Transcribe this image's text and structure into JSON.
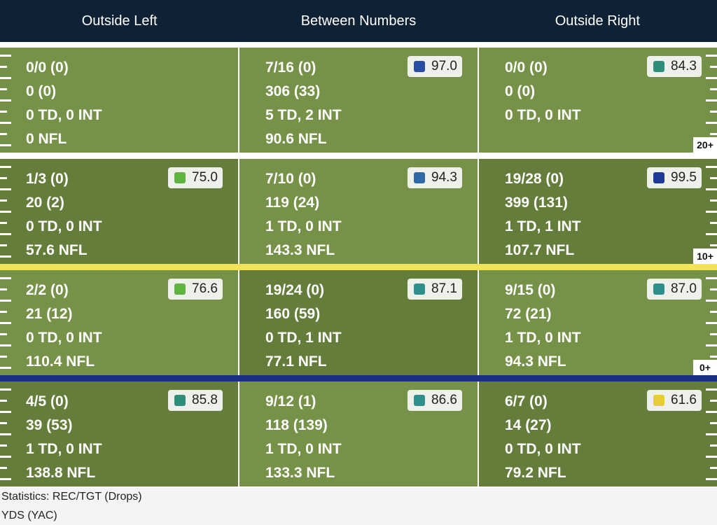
{
  "header": {
    "columns": [
      "Outside Left",
      "Between Numbers",
      "Outside Right"
    ]
  },
  "colors": {
    "header_bg": "#0f2235",
    "field_light": "#769148",
    "field_dark": "#647d3a",
    "line_white": "#ffffff",
    "line_yellow": "#f2e35a",
    "line_blue": "#1b2f80"
  },
  "rows": [
    {
      "yard_label": "20+",
      "cells": [
        {
          "rec": "0/0 (0)",
          "yds": "0 (0)",
          "td": "0 TD, 0 INT",
          "nfl": "0 NFL",
          "grade": null,
          "grade_color": null
        },
        {
          "rec": "7/16 (0)",
          "yds": "306 (33)",
          "td": "5 TD, 2 INT",
          "nfl": "90.6 NFL",
          "grade": "97.0",
          "grade_color": "#2a4ea6"
        },
        {
          "rec": "0/0 (0)",
          "yds": "0 (0)",
          "td": "0 TD, 0 INT",
          "nfl": "",
          "grade": "84.3",
          "grade_color": "#2e8e7a"
        }
      ]
    },
    {
      "yard_label": "10+",
      "cells": [
        {
          "rec": "1/3 (0)",
          "yds": "20 (2)",
          "td": "0 TD, 0 INT",
          "nfl": "57.6 NFL",
          "grade": "75.0",
          "grade_color": "#5fb33f"
        },
        {
          "rec": "7/10 (0)",
          "yds": "119 (24)",
          "td": "1 TD, 0 INT",
          "nfl": "143.3 NFL",
          "grade": "94.3",
          "grade_color": "#2e6aa8"
        },
        {
          "rec": "19/28 (0)",
          "yds": "399 (131)",
          "td": "1 TD, 1 INT",
          "nfl": "107.7 NFL",
          "grade": "99.5",
          "grade_color": "#1f3a96"
        }
      ]
    },
    {
      "yard_label": "0+",
      "cells": [
        {
          "rec": "2/2 (0)",
          "yds": "21 (12)",
          "td": "0 TD, 0 INT",
          "nfl": "110.4 NFL",
          "grade": "76.6",
          "grade_color": "#5fb33f"
        },
        {
          "rec": "19/24 (0)",
          "yds": "160 (59)",
          "td": "0 TD, 1 INT",
          "nfl": "77.1 NFL",
          "grade": "87.1",
          "grade_color": "#2f8f8c"
        },
        {
          "rec": "9/15 (0)",
          "yds": "72 (21)",
          "td": "1 TD, 0 INT",
          "nfl": "94.3 NFL",
          "grade": "87.0",
          "grade_color": "#2f8f8c"
        }
      ]
    },
    {
      "yard_label": "",
      "cells": [
        {
          "rec": "4/5 (0)",
          "yds": "39 (53)",
          "td": "1 TD, 0 INT",
          "nfl": "138.8 NFL",
          "grade": "85.8",
          "grade_color": "#2e8e7a"
        },
        {
          "rec": "9/12 (1)",
          "yds": "118 (139)",
          "td": "1 TD, 0 INT",
          "nfl": "133.3 NFL",
          "grade": "86.6",
          "grade_color": "#2f8f8c"
        },
        {
          "rec": "6/7 (0)",
          "yds": "14 (27)",
          "td": "0 TD, 0 INT",
          "nfl": "79.2 NFL",
          "grade": "61.6",
          "grade_color": "#e8cc3a"
        }
      ]
    }
  ],
  "legend": {
    "line1": "Statistics: REC/TGT (Drops)",
    "line2": "YDS (YAC)"
  }
}
